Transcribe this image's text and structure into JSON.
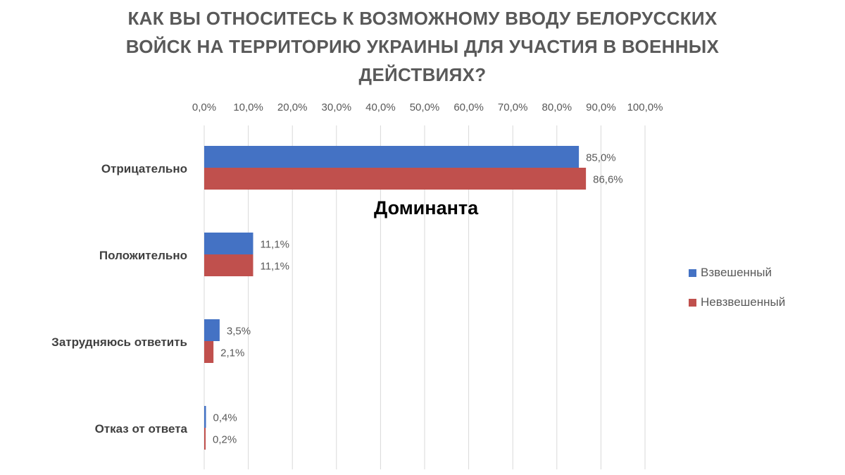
{
  "title_lines": [
    "КАК ВЫ ОТНОСИТЕСЬ К ВОЗМОЖНОМУ ВВОДУ БЕЛОРУССКИХ",
    "ВОЙСК НА ТЕРРИТОРИЮ УКРАИНЫ ДЛЯ УЧАСТИЯ В ВОЕННЫХ",
    "ДЕЙСТВИЯХ?"
  ],
  "annotation": "Доминанта",
  "chart_data": {
    "type": "bar",
    "orientation": "horizontal",
    "title": "КАК ВЫ ОТНОСИТЕСЬ К ВОЗМОЖНОМУ ВВОДУ БЕЛОРУССКИХ ВОЙСК НА ТЕРРИТОРИЮ УКРАИНЫ ДЛЯ УЧАСТИЯ В ВОЕННЫХ ДЕЙСТВИЯХ?",
    "categories": [
      "Отрицательно",
      "Положительно",
      "Затрудняюсь ответить",
      "Отказ от ответа"
    ],
    "series": [
      {
        "name": "Взвешенный",
        "color": "#4472C4",
        "values": [
          85.0,
          11.1,
          3.5,
          0.4
        ],
        "labels": [
          "85,0%",
          "11,1%",
          "3,5%",
          "0,4%"
        ]
      },
      {
        "name": "Невзвешенный",
        "color": "#C0504D",
        "values": [
          86.6,
          11.1,
          2.1,
          0.2
        ],
        "labels": [
          "86,6%",
          "11,1%",
          "2,1%",
          "0,2%"
        ]
      }
    ],
    "xlim": [
      0,
      100
    ],
    "x_ticks": [
      0,
      10,
      20,
      30,
      40,
      50,
      60,
      70,
      80,
      90,
      100
    ],
    "x_tick_labels": [
      "0,0%",
      "10,0%",
      "20,0%",
      "30,0%",
      "40,0%",
      "50,0%",
      "60,0%",
      "70,0%",
      "80,0%",
      "90,0%",
      "100,0%"
    ],
    "x_axis_position": "top",
    "grid": true,
    "legend_position": "right",
    "gridline_color": "#D9D9D9",
    "axis_text_color": "#595959",
    "category_text_color": "#404040"
  }
}
